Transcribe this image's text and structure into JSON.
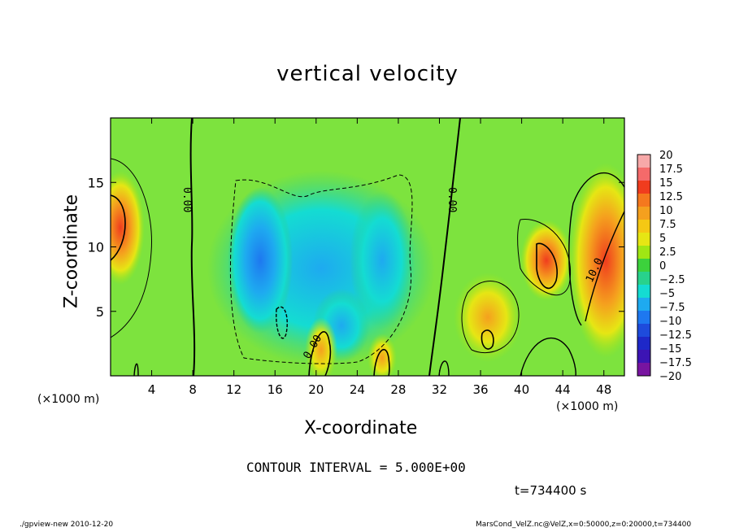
{
  "chart_data": {
    "type": "heatmap",
    "title": "vertical velocity",
    "xlabel": "X-coordinate",
    "ylabel": "Z-coordinate",
    "x_unit_label": "(×1000 m)",
    "xlim": [
      0,
      50
    ],
    "ylim": [
      0,
      20
    ],
    "x_ticks": [
      "4",
      "8",
      "12",
      "16",
      "20",
      "24",
      "28",
      "32",
      "36",
      "40",
      "44",
      "48"
    ],
    "y_ticks": [
      "5",
      "10",
      "15"
    ],
    "contour_labels": [
      "0.00",
      "0.00",
      "0.00",
      "10.0"
    ],
    "colorbar": {
      "labels": [
        "20",
        "17.5",
        "15",
        "12.5",
        "10",
        "7.5",
        "5",
        "2.5",
        "0",
        "−2.5",
        "−5",
        "−7.5",
        "−10",
        "−12.5",
        "−15",
        "−17.5",
        "−20"
      ],
      "colors": [
        "#f7a8a8",
        "#f56a6a",
        "#f03c1e",
        "#f5781e",
        "#f5a01e",
        "#f5c814",
        "#e6e614",
        "#a0e614",
        "#3cd23c",
        "#28d28c",
        "#14dcd2",
        "#1eaaf0",
        "#1e78f0",
        "#1e4bdc",
        "#1e28c8",
        "#3c14b4",
        "#7814a0"
      ]
    },
    "features": [
      {
        "x": 1.0,
        "z": 12.0,
        "value": 12
      },
      {
        "x": 42.0,
        "z": 9.0,
        "value": 10
      },
      {
        "x": 48.5,
        "z": 9.0,
        "value": 12
      },
      {
        "x": 36.5,
        "z": 4.0,
        "value": 8
      },
      {
        "x": 15.0,
        "z": 6.0,
        "value": -8
      },
      {
        "x": 19.0,
        "z": 9.5,
        "value": -6
      },
      {
        "x": 26.0,
        "z": 10.0,
        "value": -6
      },
      {
        "x": 22.5,
        "z": 4.0,
        "value": -5
      }
    ]
  },
  "annotations": {
    "contour_interval": "CONTOUR INTERVAL = 5.000E+00",
    "time": "t=734400 s",
    "footer_left": "./gpview-new  2010-12-20",
    "footer_right": "MarsCond_VelZ.nc@VelZ,x=0:50000,z=0:20000,t=734400"
  }
}
